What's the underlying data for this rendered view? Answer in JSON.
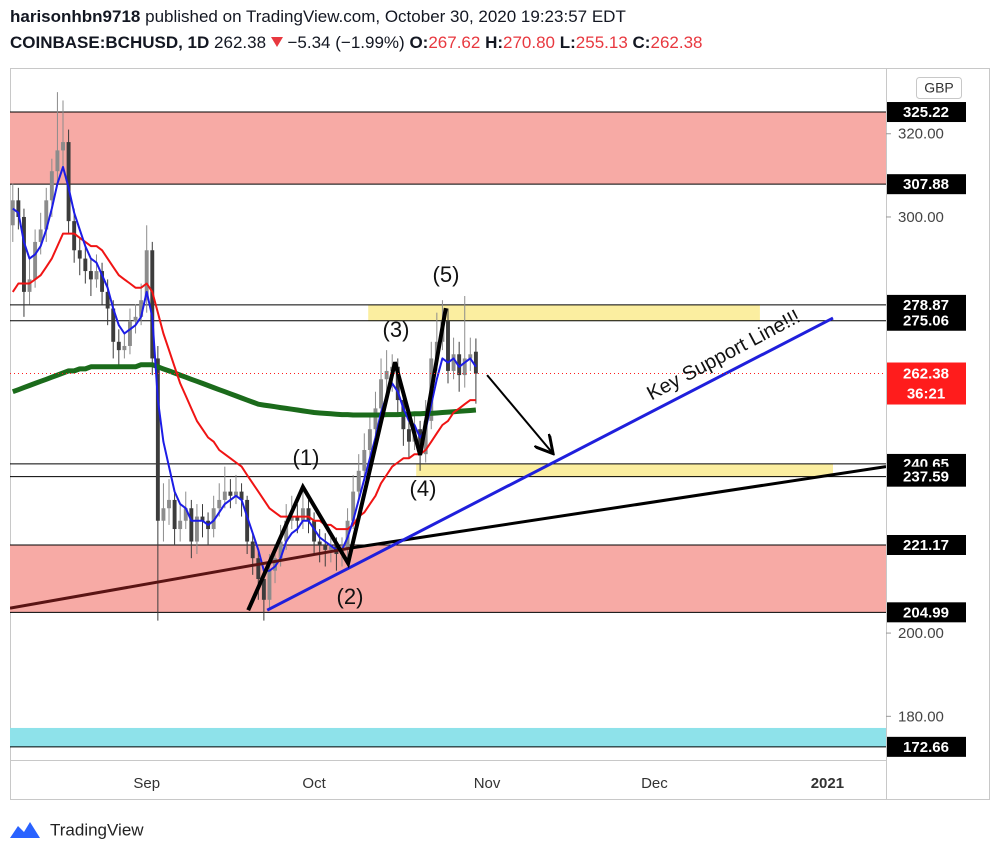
{
  "header": {
    "author": "harisonhbn9718",
    "published": "published on TradingView.com, October 30, 2020 19:23:57 EDT",
    "symbol": "COINBASE:BCHUSD, 1D",
    "last": "262.38",
    "change": "−5.34 (−1.99%)",
    "ohlc": [
      {
        "label": "O:",
        "value": "267.62"
      },
      {
        "label": "H:",
        "value": "270.80"
      },
      {
        "label": "L:",
        "value": "255.13"
      },
      {
        "label": "C:",
        "value": "262.38"
      }
    ]
  },
  "footer": {
    "brand": "TradingView"
  },
  "chart_data": {
    "type": "candlestick",
    "currency": "GBP",
    "categories": [
      null,
      null,
      null,
      null,
      null,
      null,
      null,
      null,
      null,
      null,
      null,
      null,
      null,
      null,
      null,
      null,
      null,
      null,
      null,
      null,
      null,
      null,
      null,
      null,
      "Sep",
      null,
      null,
      null,
      null,
      null,
      null,
      null,
      null,
      null,
      null,
      null,
      null,
      null,
      null,
      null,
      null,
      null,
      null,
      null,
      null,
      null,
      null,
      null,
      null,
      null,
      null,
      null,
      null,
      null,
      "Oct",
      null,
      null,
      null,
      null,
      null,
      null,
      null,
      null,
      null,
      null,
      null,
      null,
      null,
      null,
      null,
      null,
      null,
      null,
      null,
      null,
      null,
      null,
      null,
      null,
      null,
      null,
      null,
      null,
      null,
      null,
      "Nov",
      null,
      null,
      null,
      null,
      null,
      null,
      null,
      null,
      null,
      null,
      null,
      null,
      null,
      null,
      null,
      null,
      null,
      null,
      null,
      null,
      null,
      null,
      null,
      null,
      null,
      null,
      null,
      null,
      null,
      "Dec",
      null,
      null,
      null,
      null,
      null,
      null,
      null,
      null,
      null,
      null,
      null,
      null,
      null,
      null,
      null,
      null,
      null,
      null,
      null,
      null,
      null,
      null,
      null,
      null,
      null,
      null,
      null,
      null,
      null,
      null,
      "2021",
      null,
      null,
      null,
      null,
      null,
      null,
      null,
      null,
      null,
      null
    ],
    "ohlc": [
      [
        298,
        308,
        294,
        304
      ],
      [
        304,
        307,
        297,
        300
      ],
      [
        300,
        302,
        276,
        282
      ],
      [
        282,
        290,
        279,
        285
      ],
      [
        285,
        297,
        283,
        294
      ],
      [
        294,
        301,
        291,
        297
      ],
      [
        297,
        307,
        294,
        304
      ],
      [
        304,
        314,
        300,
        311
      ],
      [
        311,
        330,
        308,
        316
      ],
      [
        316,
        328,
        312,
        318
      ],
      [
        318,
        321,
        296,
        299
      ],
      [
        299,
        302,
        289,
        292
      ],
      [
        292,
        295,
        286,
        290
      ],
      [
        290,
        293,
        284,
        287
      ],
      [
        287,
        290,
        281,
        285
      ],
      [
        285,
        291,
        283,
        287
      ],
      [
        287,
        289,
        279,
        282
      ],
      [
        282,
        285,
        274,
        278
      ],
      [
        278,
        280,
        266,
        270
      ],
      [
        270,
        273,
        264,
        268
      ],
      [
        268,
        272,
        266,
        269
      ],
      [
        269,
        278,
        267,
        275
      ],
      [
        275,
        279,
        272,
        276
      ],
      [
        276,
        284,
        274,
        280
      ],
      [
        280,
        298,
        277,
        292
      ],
      [
        292,
        294,
        262,
        266
      ],
      [
        266,
        269,
        203,
        227
      ],
      [
        227,
        236,
        222,
        230
      ],
      [
        230,
        237,
        226,
        232
      ],
      [
        232,
        234,
        221,
        225
      ],
      [
        225,
        231,
        222,
        227
      ],
      [
        227,
        234,
        225,
        230
      ],
      [
        230,
        232,
        218,
        222
      ],
      [
        222,
        231,
        219,
        228
      ],
      [
        228,
        231,
        223,
        227
      ],
      [
        227,
        229,
        221,
        225
      ],
      [
        225,
        233,
        223,
        230
      ],
      [
        230,
        236,
        228,
        232
      ],
      [
        232,
        240,
        230,
        234
      ],
      [
        234,
        237,
        230,
        233
      ],
      [
        233,
        238,
        231,
        234
      ],
      [
        234,
        236,
        228,
        232
      ],
      [
        232,
        233,
        219,
        222
      ],
      [
        222,
        224,
        214,
        218
      ],
      [
        218,
        220,
        208,
        213
      ],
      [
        213,
        215,
        203,
        208
      ],
      [
        208,
        219,
        206,
        215
      ],
      [
        215,
        221,
        212,
        218
      ],
      [
        218,
        226,
        216,
        222
      ],
      [
        222,
        231,
        220,
        227
      ],
      [
        227,
        233,
        225,
        228
      ],
      [
        228,
        231,
        224,
        227
      ],
      [
        227,
        234,
        225,
        230
      ],
      [
        230,
        232,
        224,
        227
      ],
      [
        227,
        229,
        219,
        222
      ],
      [
        222,
        225,
        217,
        221
      ],
      [
        221,
        224,
        216,
        220
      ],
      [
        220,
        224,
        217,
        221
      ],
      [
        221,
        223,
        215,
        219
      ],
      [
        219,
        223,
        216,
        220
      ],
      [
        220,
        230,
        218,
        227
      ],
      [
        227,
        238,
        225,
        234
      ],
      [
        234,
        243,
        232,
        239
      ],
      [
        239,
        248,
        237,
        244
      ],
      [
        244,
        253,
        242,
        249
      ],
      [
        249,
        258,
        247,
        254
      ],
      [
        254,
        266,
        252,
        261
      ],
      [
        261,
        268,
        258,
        263
      ],
      [
        263,
        267,
        258,
        264
      ],
      [
        264,
        266,
        252,
        256
      ],
      [
        256,
        258,
        245,
        249
      ],
      [
        249,
        252,
        242,
        246
      ],
      [
        246,
        253,
        244,
        249
      ],
      [
        249,
        251,
        239,
        243
      ],
      [
        243,
        256,
        241,
        251
      ],
      [
        251,
        270,
        249,
        266
      ],
      [
        266,
        277,
        263,
        270
      ],
      [
        270,
        280,
        268,
        275
      ],
      [
        275,
        278,
        260,
        263
      ],
      [
        263,
        271,
        261,
        267
      ],
      [
        267,
        270,
        258,
        262
      ],
      [
        262,
        281,
        259,
        266
      ],
      [
        266,
        271,
        263,
        267
      ],
      [
        267.62,
        270.8,
        255.13,
        262.38
      ],
      null,
      null,
      null,
      null,
      null,
      null,
      null,
      null,
      null,
      null,
      null,
      null,
      null,
      null,
      null,
      null,
      null,
      null,
      null,
      null,
      null,
      null,
      null,
      null,
      null,
      null,
      null,
      null,
      null,
      null,
      null,
      null,
      null,
      null,
      null,
      null,
      null,
      null,
      null,
      null,
      null,
      null,
      null,
      null,
      null,
      null,
      null,
      null,
      null,
      null,
      null,
      null,
      null,
      null,
      null,
      null,
      null,
      null,
      null,
      null,
      null,
      null,
      null,
      null,
      null,
      null,
      null,
      null,
      null,
      null,
      null,
      null,
      null
    ],
    "up_color": "#8c8c8c",
    "down_color": "#3c3c3c",
    "series": [
      {
        "color": "#1b6b1b",
        "width": 5,
        "values": [
          258,
          258.5,
          259,
          259.5,
          260,
          260.5,
          261,
          261.5,
          262,
          262.5,
          263,
          263,
          263.5,
          263.5,
          264,
          264,
          264,
          264,
          264,
          264,
          264,
          264,
          264,
          264.5,
          264.5,
          264.5,
          264,
          263.5,
          263,
          262.5,
          262,
          261.5,
          261,
          260.5,
          260,
          259.5,
          259,
          258.5,
          258,
          257.5,
          257,
          256.5,
          256,
          255.5,
          255,
          254.8,
          254.6,
          254.4,
          254.2,
          254,
          253.8,
          253.6,
          253.4,
          253.2,
          253,
          252.9,
          252.8,
          252.7,
          252.6,
          252.5,
          252.5,
          252.4,
          252.4,
          252.4,
          252.4,
          252.4,
          252.4,
          252.5,
          252.5,
          252.5,
          252.6,
          252.6,
          252.7,
          252.7,
          252.8,
          252.8,
          252.9,
          253,
          253.1,
          253.2,
          253.3,
          253.4,
          253.5,
          253.6,
          null,
          null,
          null,
          null,
          null,
          null,
          null,
          null,
          null,
          null,
          null,
          null,
          null,
          null,
          null,
          null,
          null,
          null,
          null,
          null,
          null,
          null,
          null,
          null,
          null,
          null,
          null,
          null,
          null,
          null,
          null,
          null,
          null,
          null,
          null,
          null,
          null,
          null,
          null,
          null,
          null,
          null,
          null,
          null,
          null,
          null,
          null,
          null,
          null,
          null,
          null,
          null,
          null,
          null,
          null,
          null,
          null,
          null,
          null,
          null,
          null,
          null,
          null,
          null,
          null,
          null,
          null,
          null,
          null,
          null,
          null,
          null,
          null
        ]
      },
      {
        "color": "#f01414",
        "width": 2,
        "values": [
          282,
          284,
          284,
          284,
          285,
          286,
          288,
          290,
          293,
          296,
          296,
          296,
          295,
          294,
          293,
          293,
          292,
          290,
          288,
          286,
          285,
          284,
          283,
          283,
          284,
          282,
          277,
          272,
          268,
          264,
          260,
          257,
          254,
          251,
          249,
          247,
          246,
          244,
          243,
          242,
          241,
          240,
          238,
          236,
          234,
          232,
          230,
          229,
          228,
          228,
          228,
          228,
          228,
          228,
          227,
          227,
          226,
          226,
          225,
          225,
          225,
          226,
          228,
          229,
          231,
          233,
          236,
          238,
          240,
          241,
          242,
          242,
          243,
          243,
          244,
          246,
          248,
          250,
          251,
          253,
          254,
          255,
          256,
          256,
          null,
          null,
          null,
          null,
          null,
          null,
          null,
          null,
          null,
          null,
          null,
          null,
          null,
          null,
          null,
          null,
          null,
          null,
          null,
          null,
          null,
          null,
          null,
          null,
          null,
          null,
          null,
          null,
          null,
          null,
          null,
          null,
          null,
          null,
          null,
          null,
          null,
          null,
          null,
          null,
          null,
          null,
          null,
          null,
          null,
          null,
          null,
          null,
          null,
          null,
          null,
          null,
          null,
          null,
          null,
          null,
          null,
          null,
          null,
          null,
          null,
          null,
          null,
          null,
          null,
          null,
          null,
          null,
          null,
          null,
          null,
          null,
          null
        ]
      },
      {
        "color": "#1c1ce6",
        "width": 2,
        "values": [
          302,
          301,
          294,
          290,
          291,
          293,
          297,
          302,
          308,
          312,
          307,
          301,
          297,
          293,
          290,
          289,
          286,
          283,
          278,
          274,
          272,
          273,
          274,
          276,
          282,
          276,
          256,
          246,
          240,
          234,
          231,
          230,
          227,
          227,
          227,
          226,
          227,
          229,
          231,
          232,
          233,
          232,
          228,
          224,
          220,
          215,
          215,
          216,
          218,
          222,
          224,
          225,
          227,
          227,
          225,
          223,
          222,
          221,
          220,
          220,
          223,
          227,
          232,
          237,
          242,
          247,
          253,
          257,
          260,
          258,
          254,
          251,
          250,
          247,
          249,
          255,
          261,
          266,
          265,
          266,
          264,
          265,
          266,
          264,
          null,
          null,
          null,
          null,
          null,
          null,
          null,
          null,
          null,
          null,
          null,
          null,
          null,
          null,
          null,
          null,
          null,
          null,
          null,
          null,
          null,
          null,
          null,
          null,
          null,
          null,
          null,
          null,
          null,
          null,
          null,
          null,
          null,
          null,
          null,
          null,
          null,
          null,
          null,
          null,
          null,
          null,
          null,
          null,
          null,
          null,
          null,
          null,
          null,
          null,
          null,
          null,
          null,
          null,
          null,
          null,
          null,
          null,
          null,
          null,
          null,
          null,
          null,
          null,
          null,
          null,
          null,
          null,
          null,
          null,
          null,
          null,
          null
        ]
      }
    ],
    "zones": [
      {
        "from": -0.5,
        "to": 156.5,
        "low": 307.88,
        "high": 325.22,
        "color": "#f7aaa5"
      },
      {
        "from": -0.5,
        "to": 156.5,
        "low": 204.99,
        "high": 221.17,
        "color": "#f7aaa5"
      },
      {
        "from": 63.7,
        "to": 133.9,
        "low": 275.06,
        "high": 278.87,
        "color": "#fbeea0"
      },
      {
        "from": 72.3,
        "to": 147,
        "low": 237.59,
        "high": 240.65,
        "color": "#fbeea0"
      },
      {
        "from": -0.5,
        "to": 156.5,
        "low": 172.66,
        "high": 177.2,
        "color": "#8ee2ea"
      }
    ],
    "drawings": [
      {
        "color": "#5a1414",
        "width": 3,
        "points": [
          [
            -0.5,
            206
          ],
          [
            60.4,
            220.4
          ]
        ]
      },
      {
        "color": "#000000",
        "width": 3,
        "points": [
          [
            60.4,
            220.4
          ],
          [
            156.5,
            240
          ]
        ]
      },
      {
        "color": "#1f1fdc",
        "width": 3,
        "points": [
          [
            45.6,
            205.5
          ],
          [
            147,
            275.7
          ]
        ]
      },
      {
        "color": "#000000",
        "width": 4,
        "points": [
          [
            42.2,
            205.5
          ],
          [
            52,
            235.1
          ],
          [
            60.1,
            216.8
          ],
          [
            68.5,
            265.1
          ],
          [
            73,
            242.8
          ],
          [
            77.6,
            278.1
          ]
        ]
      },
      {
        "color": "#000000",
        "width": 2,
        "arrow": true,
        "points": [
          [
            85,
            262
          ],
          [
            96.6,
            243.5
          ]
        ]
      }
    ],
    "annotations": [
      "(1)",
      "(2)",
      "(3)",
      "(4)",
      "(5)",
      "Key Support Line!!!"
    ],
    "price_lines": [
      325.22,
      307.88,
      278.87,
      275.06,
      240.65,
      237.59,
      221.17,
      204.99,
      172.66
    ],
    "last_price": 262.38,
    "last_color": "#ff1c1c",
    "countdown": "36:21",
    "ylim": [
      169.5,
      335.8
    ],
    "yticks": [
      {
        "value": 180,
        "label": "180.00"
      },
      {
        "value": 200,
        "label": "200.00"
      },
      {
        "value": 300,
        "label": "300.00"
      },
      {
        "value": 320,
        "label": "320.00"
      }
    ]
  }
}
